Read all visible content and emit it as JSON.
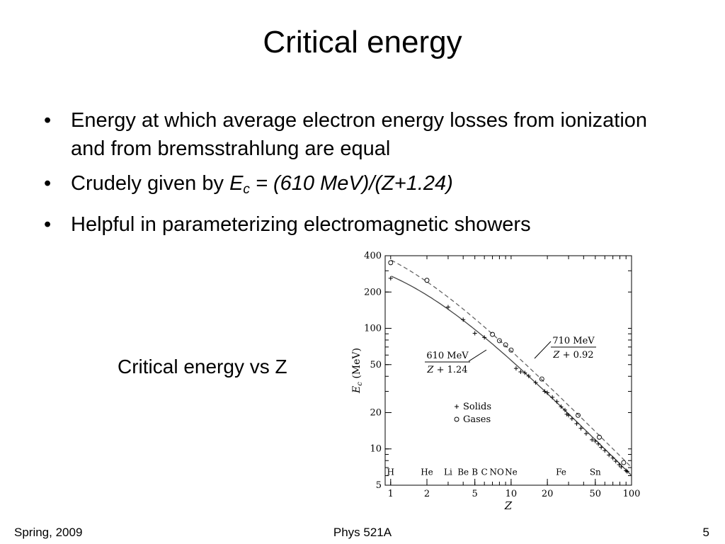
{
  "slide": {
    "title": "Critical energy",
    "bullets": [
      {
        "text": "Energy at which average electron energy losses from ionization and from bremsstrahlung are equal"
      },
      {
        "prefix": "Crudely given by ",
        "E": "E",
        "sub": "c",
        "formula": " = (610 MeV)/(Z+1.24)"
      },
      {
        "text": "Helpful in parameterizing electromagnetic showers"
      }
    ],
    "bullet_glyph": "•",
    "caption": "Critical energy vs Z"
  },
  "footer": {
    "left": "Spring, 2009",
    "center": "Phys 521A",
    "right": "5"
  },
  "chart_data": {
    "type": "scatter",
    "x_scale": "log",
    "y_scale": "log",
    "xlim": [
      0.9,
      100
    ],
    "ylim": [
      5,
      400
    ],
    "xlabel": "Z",
    "ylabel": "E_c (MeV)",
    "x_ticks": [
      "1",
      "2",
      "5",
      "10",
      "20",
      "50",
      "100"
    ],
    "y_ticks": [
      "5",
      "10",
      "20",
      "50",
      "100",
      "200",
      "400"
    ],
    "elements": [
      {
        "label": "H",
        "z": 1
      },
      {
        "label": "He",
        "z": 2
      },
      {
        "label": "Li",
        "z": 3
      },
      {
        "label": "Be",
        "z": 4
      },
      {
        "label": "B",
        "z": 5
      },
      {
        "label": "C",
        "z": 6
      },
      {
        "label": "NO",
        "z": 7.6
      },
      {
        "label": "Ne",
        "z": 10
      },
      {
        "label": "Fe",
        "z": 26
      },
      {
        "label": "Sn",
        "z": 50
      }
    ],
    "series": [
      {
        "name": "Solids",
        "marker": "+",
        "x": [
          1,
          3,
          4,
          5,
          6,
          11,
          12,
          13,
          14,
          16,
          19,
          20,
          22,
          24,
          26,
          28,
          29,
          30,
          32,
          35,
          38,
          42,
          47,
          50,
          53,
          56,
          60,
          65,
          70,
          74,
          79,
          82,
          90,
          92
        ],
        "y": [
          260,
          150,
          118,
          91,
          84,
          46.5,
          43.5,
          42.7,
          40.2,
          35.5,
          30,
          29.2,
          26.8,
          24.7,
          22.4,
          21,
          19.4,
          19.0,
          17.8,
          16.2,
          14.8,
          13.4,
          11.9,
          11.6,
          11.0,
          10.3,
          9.7,
          8.9,
          8.4,
          7.9,
          7.4,
          7.1,
          6.6,
          6.5
        ]
      },
      {
        "name": "Gases",
        "marker": "o",
        "x": [
          1,
          2,
          7,
          8,
          9,
          10,
          18,
          36,
          54,
          86
        ],
        "y": [
          350,
          250,
          89,
          79,
          73,
          66,
          38.0,
          19.0,
          12.5,
          7.7
        ]
      }
    ],
    "curves": [
      {
        "label_num": "610 MeV",
        "label_den": "Z + 1.24",
        "style": "solid",
        "numerator": 610,
        "offset": 1.24
      },
      {
        "label_num": "710 MeV",
        "label_den": "Z + 0.92",
        "style": "dashed",
        "numerator": 710,
        "offset": 0.92
      }
    ],
    "colors": {
      "axis": "#000000",
      "solid_line": "#444444",
      "dashed_line": "#666666"
    }
  }
}
